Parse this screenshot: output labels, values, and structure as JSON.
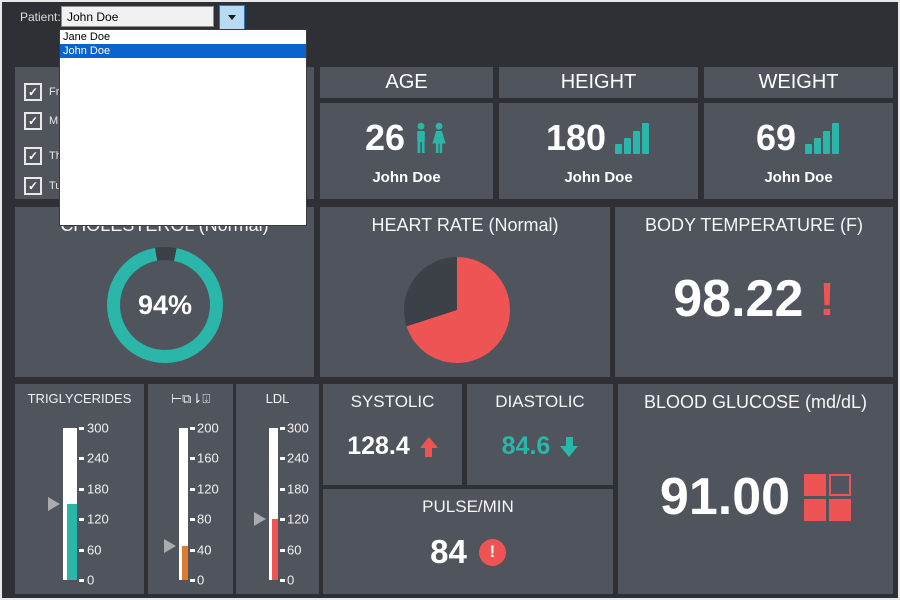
{
  "topbar": {
    "patient_label": "Patient:",
    "patient_value": "John Doe"
  },
  "dropdown": {
    "options": [
      {
        "label": "Jane Doe",
        "selected": false
      },
      {
        "label": "John Doe",
        "selected": true
      }
    ]
  },
  "filters": {
    "items": [
      {
        "label": "Fr",
        "checked": true
      },
      {
        "label": "M.",
        "checked": true
      },
      {
        "label": "Th",
        "checked": true
      },
      {
        "label": "Tu",
        "checked": true
      }
    ],
    "check_glyph": "✓"
  },
  "tiles": {
    "age": {
      "header": "AGE",
      "value": "26",
      "patient": "John Doe",
      "icon": "male-female-icon"
    },
    "height": {
      "header": "HEIGHT",
      "value": "180",
      "patient": "John Doe",
      "icon": "bar-chart-icon"
    },
    "weight": {
      "header": "WEIGHT",
      "value": "69",
      "patient": "John Doe",
      "icon": "bar-chart-icon"
    },
    "cholesterol": {
      "title": "CHOLESTEROL (Normal)",
      "percent": 94,
      "percent_label": "94%"
    },
    "heart_rate": {
      "title": "HEART RATE (Normal)",
      "filled_pct": 70,
      "remainder_pct": 30
    },
    "body_temperature": {
      "title": "BODY TEMPERATURE (F)",
      "value": "98.22",
      "alert": "!"
    },
    "triglycerides": {
      "title": "TRIGLYCERIDES",
      "min": 0,
      "max": 300,
      "value": 150,
      "ticks": [
        "300",
        "240",
        "180",
        "120",
        "60",
        "0"
      ],
      "fill_color": "#2ab7a9"
    },
    "hdl": {
      "title": "⊢⧉⇂⍗",
      "min": 0,
      "max": 200,
      "value": 45,
      "ticks": [
        "200",
        "160",
        "120",
        "80",
        "40",
        "0"
      ],
      "fill_color": "#dd7b30"
    },
    "ldl": {
      "title": "LDL",
      "min": 0,
      "max": 300,
      "value": 120,
      "ticks": [
        "300",
        "240",
        "180",
        "120",
        "60",
        "0"
      ],
      "fill_color": "#ef5455"
    },
    "systolic": {
      "title": "SYSTOLIC",
      "value": "128.4",
      "trend": "up"
    },
    "diastolic": {
      "title": "DIASTOLIC",
      "value": "84.6",
      "trend": "down"
    },
    "pulse": {
      "title": "PULSE/MIN",
      "value": "84",
      "alert": "!"
    },
    "blood_glucose": {
      "title": "BLOOD GLUCOSE (md/dL)",
      "value": "91.00"
    }
  },
  "colors": {
    "accent_teal": "#2ab7a9",
    "alert_red": "#ef5455",
    "warn_orange": "#dd7b30",
    "chart_dark": "#3c4047",
    "tile_bg": "#4f545d",
    "page_bg": "#2e3035",
    "highlight_blue": "#0a64cd"
  },
  "chart_data": [
    {
      "type": "pie",
      "style": "donut",
      "title": "CHOLESTEROL (Normal)",
      "labels": [
        "value",
        "remainder"
      ],
      "values": [
        94,
        6
      ],
      "center_label": "94%"
    },
    {
      "type": "pie",
      "title": "HEART RATE (Normal)",
      "labels": [
        "filled",
        "remainder"
      ],
      "values": [
        70,
        30
      ]
    },
    {
      "type": "bar",
      "style": "vertical-gauge",
      "title": "TRIGLYCERIDES",
      "values": [
        150
      ],
      "ylim": [
        0,
        300
      ],
      "tick_labels": [
        300,
        240,
        180,
        120,
        60,
        0
      ]
    },
    {
      "type": "bar",
      "style": "vertical-gauge",
      "title": "⊢⧉⇂⍗",
      "values": [
        45
      ],
      "ylim": [
        0,
        200
      ],
      "tick_labels": [
        200,
        160,
        120,
        80,
        40,
        0
      ]
    },
    {
      "type": "bar",
      "style": "vertical-gauge",
      "title": "LDL",
      "values": [
        120
      ],
      "ylim": [
        0,
        300
      ],
      "tick_labels": [
        300,
        240,
        180,
        120,
        60,
        0
      ]
    }
  ]
}
